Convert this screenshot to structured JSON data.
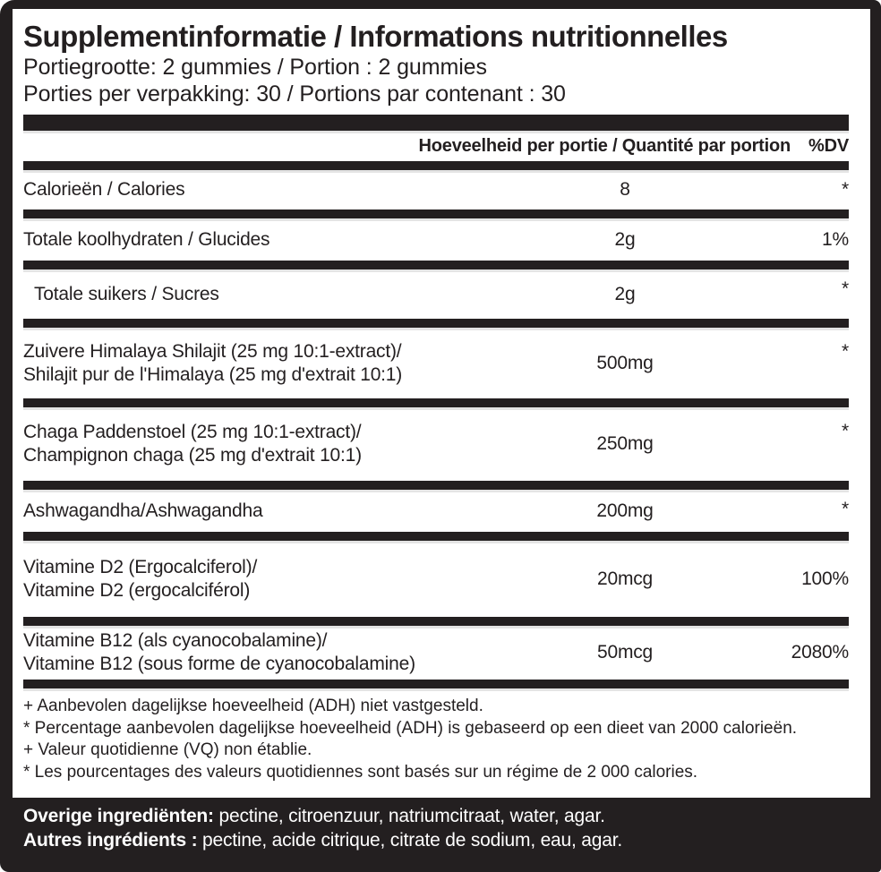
{
  "colors": {
    "ink": "#231f20",
    "paper": "#ffffff"
  },
  "header": {
    "title": "Supplementinformatie / Informations nutritionnelles",
    "serving_size": "Portiegrootte: 2 gummies / Portion : 2 gummies",
    "servings_per_container": "Porties per verpakking: 30 / Portions par contenant : 30"
  },
  "table": {
    "columns": {
      "amount": "Hoeveelheid per portie / Quantité par portion",
      "dv": "%DV"
    },
    "rows": [
      {
        "name": "Calorieën / Calories",
        "amount": "8",
        "dv": "*"
      },
      {
        "name": "Totale koolhydraten / Glucides",
        "amount": "2g",
        "dv": "1%"
      },
      {
        "name": "Totale suikers / Sucres",
        "amount": "2g",
        "dv": "*",
        "indent": true
      },
      {
        "name": "Zuivere Himalaya Shilajit (25 mg 10:1-extract)/",
        "name_line2": "Shilajit pur de l'Himalaya (25 mg d'extrait 10:1)",
        "amount": "500mg",
        "dv": "*"
      },
      {
        "name": "Chaga Paddenstoel (25 mg 10:1-extract)/",
        "name_line2": "Champignon chaga (25 mg d'extrait 10:1)",
        "amount": "250mg",
        "dv": "*"
      },
      {
        "name": "Ashwagandha/Ashwagandha",
        "amount": "200mg",
        "dv": "*"
      },
      {
        "name": "Vitamine D2 (Ergocalciferol)/",
        "name_line2": "Vitamine D2 (ergocalciférol)",
        "amount": "20mcg",
        "dv": "100%"
      },
      {
        "name": "Vitamine B12 (als cyanocobalamine)/",
        "name_line2": "Vitamine B12 (sous forme de cyanocobalamine)",
        "amount": "50mcg",
        "dv": "2080%"
      }
    ]
  },
  "footnotes": [
    "+ Aanbevolen dagelijkse hoeveelheid (ADH) niet vastgesteld.",
    "* Percentage aanbevolen dagelijkse hoeveelheid (ADH) is gebaseerd op een dieet van 2000 calorieën.",
    "+ Valeur quotidienne (VQ) non établie.",
    "* Les pourcentages des valeurs quotidiennes sont basés sur un régime de 2 000 calories."
  ],
  "other_ingredients": [
    {
      "label": "Overige ingrediënten:",
      "text": "pectine, citroenzuur, natriumcitraat, water, agar."
    },
    {
      "label": "Autres ingrédients :",
      "text": "pectine, acide citrique, citrate de sodium, eau, agar."
    }
  ]
}
